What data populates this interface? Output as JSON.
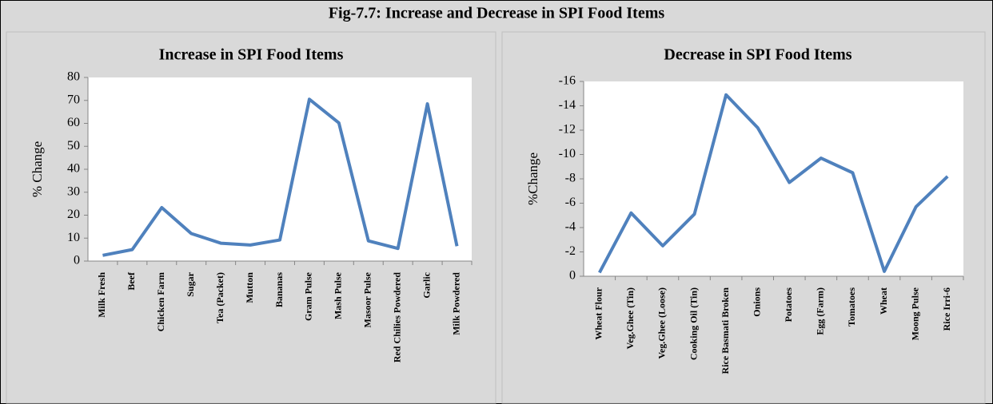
{
  "title": "Fig-7.7: Increase and Decrease in SPI Food Items",
  "chart_data": [
    {
      "type": "line",
      "title": "Increase in SPI Food Items",
      "y_label": "% Change",
      "categories": [
        "Milk Fresh",
        "Beef",
        "Chicken Farm",
        "Sugar",
        "Tea (Packet)",
        "Mutton",
        "Bananas",
        "Gram Pulse",
        "Mash Pulse",
        "Masoor Pulse",
        "Red Chilies Powdered",
        "Garlic",
        "Milk Powdered"
      ],
      "values": [
        2.5,
        5,
        23.3,
        12,
        7.8,
        7,
        9.2,
        70.5,
        60.2,
        8.8,
        5.5,
        68.5,
        6.5
      ],
      "color": "#4f81bd",
      "ylim": [
        0,
        80
      ],
      "yticks": [
        0,
        10,
        20,
        30,
        40,
        50,
        60,
        70,
        80
      ],
      "grid": false
    },
    {
      "type": "line",
      "title": "Decrease in SPI Food Items",
      "y_label": "%Change",
      "categories": [
        "Wheat Flour",
        "Veg.Ghee (Tin)",
        "Veg.Ghee (Loose)",
        "Cooking Oil (Tin)",
        "Rice Basmati Broken",
        "Onions",
        "Potatoes",
        "Egg (Farm)",
        "Tomatoes",
        "Wheat",
        "Moong Pulse",
        "Rice Irri-6"
      ],
      "values": [
        -0.3,
        -5.2,
        -2.5,
        -5.1,
        -14.9,
        -12.2,
        -7.7,
        -9.7,
        -8.5,
        -0.4,
        -5.7,
        -8.2
      ],
      "color": "#4f81bd",
      "ylim": [
        0,
        -16
      ],
      "yticks": [
        0,
        -2,
        -4,
        -6,
        -8,
        -10,
        -12,
        -14,
        -16
      ],
      "grid": false
    }
  ]
}
